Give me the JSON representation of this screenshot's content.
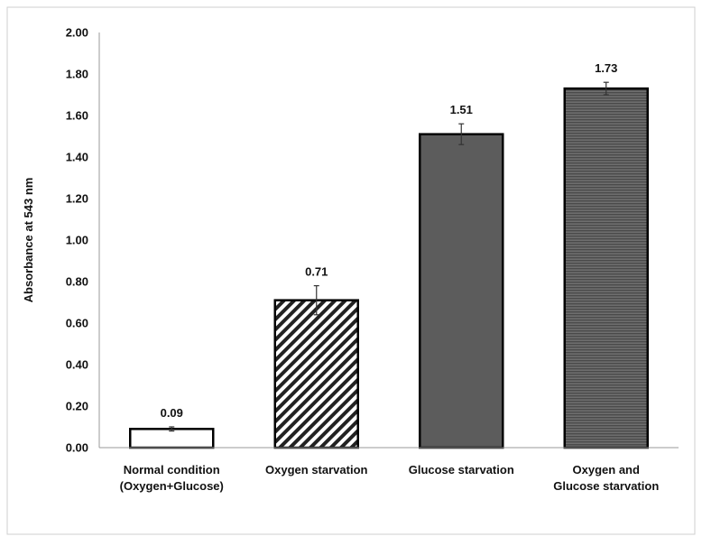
{
  "chart_data": {
    "type": "bar",
    "categories": [
      [
        "Normal condition",
        "(Oxygen+Glucose)"
      ],
      [
        "Oxygen starvation"
      ],
      [
        "Glucose starvation"
      ],
      [
        "Oxygen and",
        "Glucose starvation"
      ]
    ],
    "values": [
      0.09,
      0.71,
      1.51,
      1.73
    ],
    "errors": [
      0.01,
      0.07,
      0.05,
      0.03
    ],
    "value_labels": [
      "0.09",
      "0.71",
      "1.51",
      "1.73"
    ],
    "fills": [
      "white",
      "hatch",
      "dark-gray",
      "striped-gray"
    ],
    "ylabel": "Absorbance at 543 nm",
    "xlabel": "",
    "title": "",
    "ylim": [
      0,
      2.0
    ],
    "ytick_labels": [
      "0.00",
      "0.20",
      "0.40",
      "0.60",
      "0.80",
      "1.00",
      "1.20",
      "1.40",
      "1.60",
      "1.80",
      "2.00"
    ],
    "grid": false,
    "legend": "none",
    "colors": {
      "bar_border": "#000000",
      "bar_dark": "#5c5c5c",
      "bar_stripe_dark": "#4a4a4a",
      "bar_stripe_light": "#6e6e6e",
      "axis": "#9a9a9a",
      "frame": "#cfcfcf"
    }
  }
}
